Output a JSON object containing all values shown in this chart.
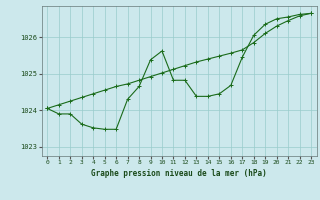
{
  "title": "Graphe pression niveau de la mer (hPa)",
  "bg_color": "#cce8ec",
  "grid_color": "#99cccc",
  "line_color": "#1a6b1a",
  "xlim": [
    -0.5,
    23.5
  ],
  "ylim": [
    1022.75,
    1026.85
  ],
  "yticks": [
    1023,
    1024,
    1025,
    1026
  ],
  "xticks": [
    0,
    1,
    2,
    3,
    4,
    5,
    6,
    7,
    8,
    9,
    10,
    11,
    12,
    13,
    14,
    15,
    16,
    17,
    18,
    19,
    20,
    21,
    22,
    23
  ],
  "trend_x": [
    0,
    1,
    2,
    3,
    4,
    5,
    6,
    7,
    8,
    9,
    10,
    11,
    12,
    13,
    14,
    15,
    16,
    17,
    18,
    19,
    20,
    21,
    22,
    23
  ],
  "trend_y": [
    1024.05,
    1024.15,
    1024.25,
    1024.35,
    1024.45,
    1024.55,
    1024.65,
    1024.72,
    1024.82,
    1024.92,
    1025.02,
    1025.12,
    1025.22,
    1025.32,
    1025.4,
    1025.48,
    1025.56,
    1025.65,
    1025.85,
    1026.1,
    1026.3,
    1026.45,
    1026.58,
    1026.65
  ],
  "jagged_x": [
    0,
    1,
    2,
    3,
    4,
    5,
    6,
    7,
    8,
    9,
    10,
    11,
    12,
    13,
    14,
    15,
    16,
    17,
    18,
    19,
    20,
    21,
    22,
    23
  ],
  "jagged_y": [
    1024.05,
    1023.9,
    1023.9,
    1023.62,
    1023.52,
    1023.48,
    1023.48,
    1024.3,
    1024.65,
    1025.38,
    1025.62,
    1024.82,
    1024.82,
    1024.38,
    1024.38,
    1024.45,
    1024.68,
    1025.45,
    1026.05,
    1026.35,
    1026.5,
    1026.55,
    1026.62,
    1026.65
  ]
}
